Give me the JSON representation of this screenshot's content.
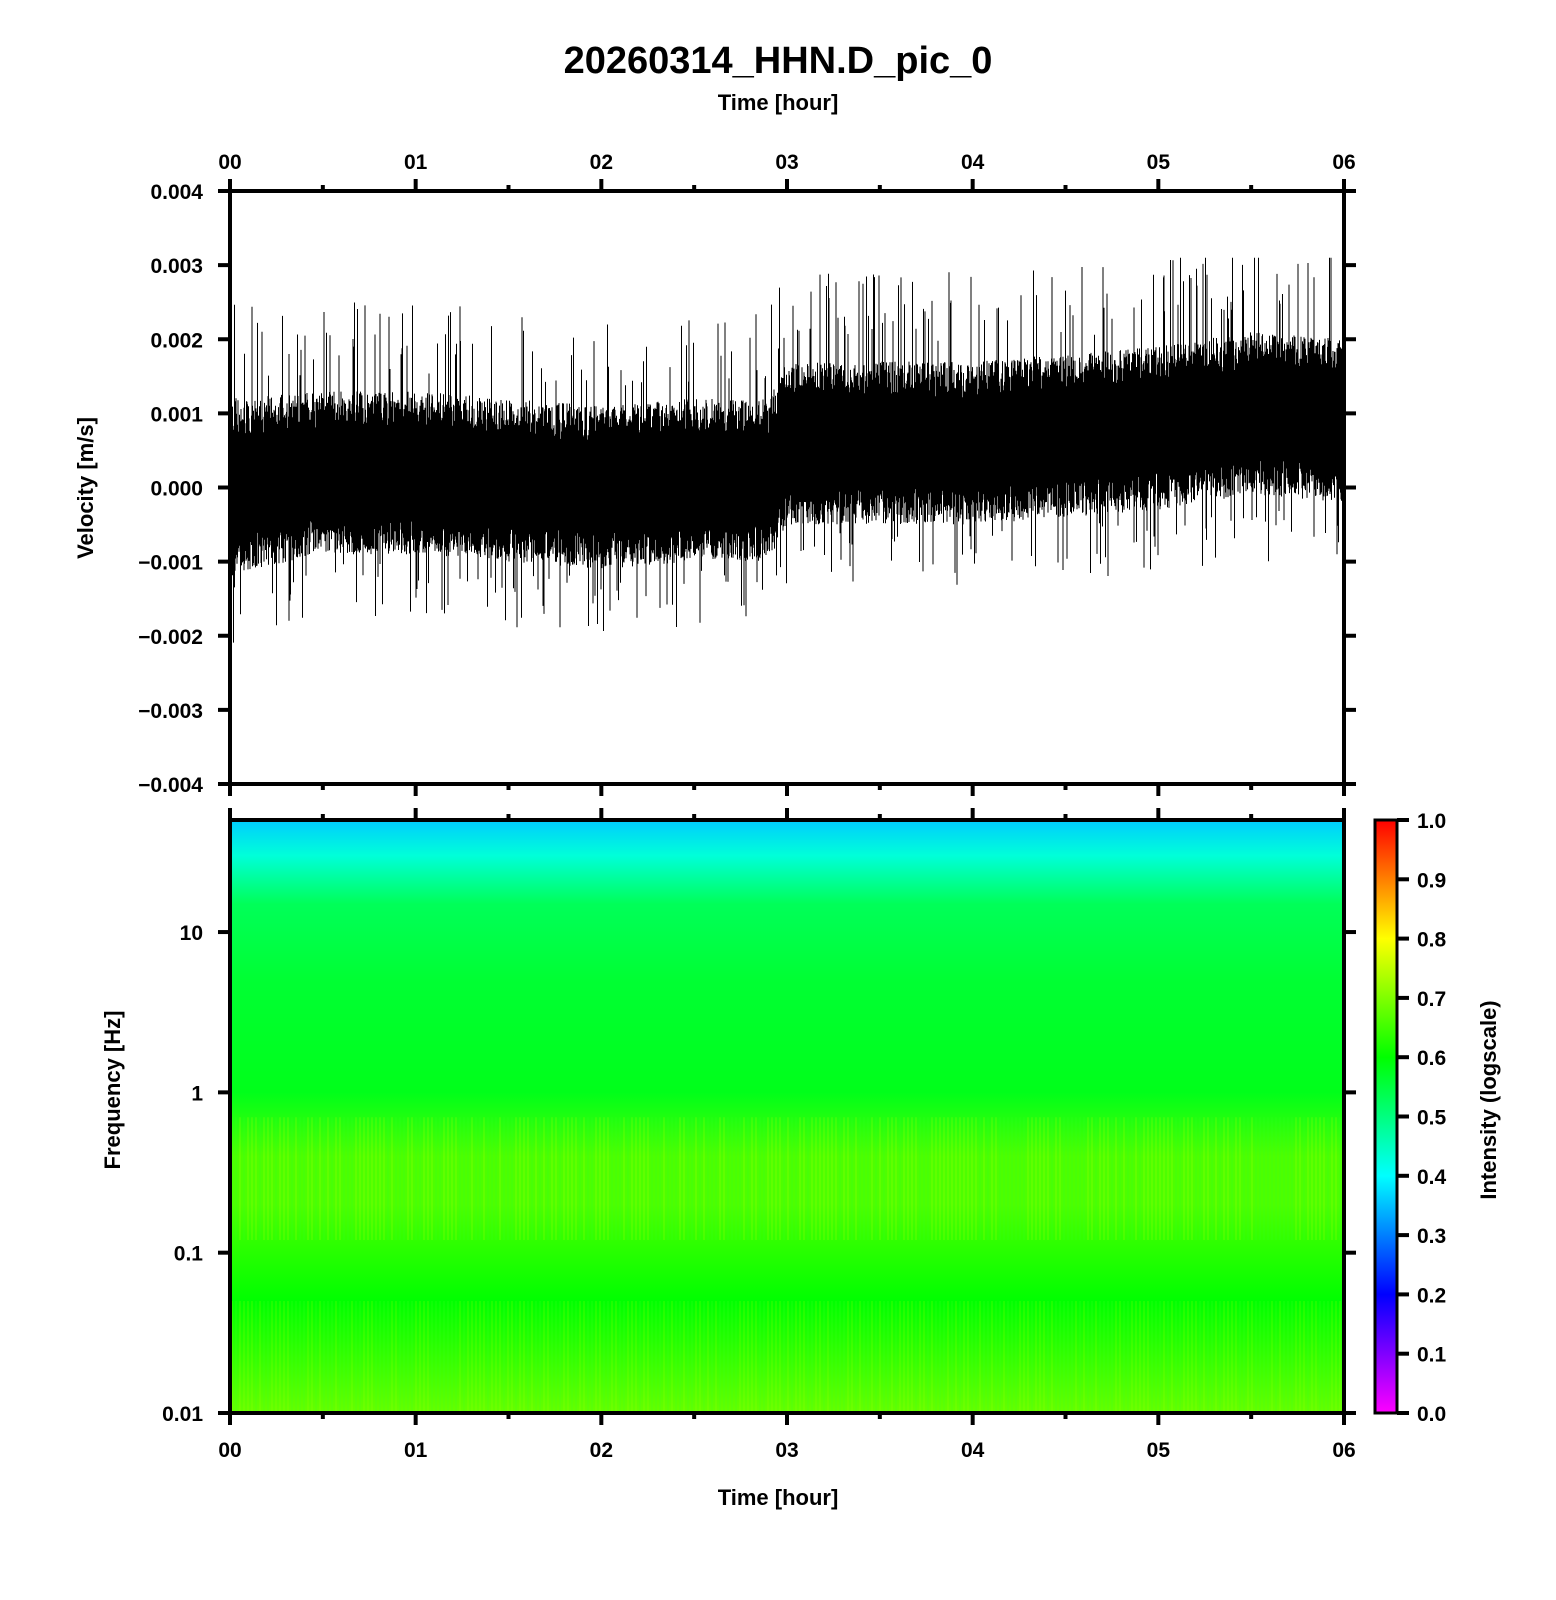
{
  "chart_data": [
    {
      "type": "line",
      "title": "20260314_HHN.D_pic_0",
      "top_axis_label": "Time [hour]",
      "xlabel": "",
      "ylabel": "Velocity [m/s]",
      "xlim": [
        0,
        6
      ],
      "ylim": [
        -0.004,
        0.004
      ],
      "x_ticks": [
        "00",
        "01",
        "02",
        "03",
        "04",
        "05",
        "06"
      ],
      "y_ticks": [
        "0.004",
        "0.003",
        "0.002",
        "0.001",
        "0.000",
        "−0.001",
        "−0.002",
        "−0.003",
        "−0.004"
      ],
      "series": [
        {
          "color": "#000000",
          "envelope_hours": [
            0,
            0.5,
            1,
            1.5,
            2,
            2.5,
            2.9,
            3,
            3.5,
            4,
            4.5,
            5,
            5.5,
            6
          ],
          "center": [
            0.0,
            0.0002,
            0.0002,
            0.0001,
            0.0,
            0.0001,
            0.0001,
            0.0006,
            0.0006,
            0.0006,
            0.0007,
            0.0008,
            0.001,
            0.0009
          ],
          "amplitude": [
            0.0012,
            0.0011,
            0.0011,
            0.0011,
            0.0011,
            0.0011,
            0.0011,
            0.0011,
            0.0011,
            0.0011,
            0.0011,
            0.0011,
            0.0011,
            0.0011
          ],
          "peak_max": 0.0031,
          "peak_min": -0.0022
        }
      ],
      "grid": false
    },
    {
      "type": "heatmap",
      "xlabel": "Time [hour]",
      "ylabel": "Frequency [Hz]",
      "xlim": [
        0,
        6
      ],
      "ylim": [
        0.01,
        50
      ],
      "yscale": "log",
      "x_ticks": [
        "00",
        "01",
        "02",
        "03",
        "04",
        "05",
        "06"
      ],
      "y_ticks": [
        "0.01",
        "0.1",
        "1",
        "10"
      ],
      "colorbar": {
        "label": "Intensity (logscale)",
        "range": [
          0.0,
          1.0
        ],
        "ticks": [
          "0.0",
          "0.1",
          "0.2",
          "0.3",
          "0.4",
          "0.5",
          "0.6",
          "0.7",
          "0.8",
          "0.9",
          "1.0"
        ],
        "colormap": [
          "#ff00ff",
          "#0000ff",
          "#00ffff",
          "#00ff00",
          "#ffff00",
          "#ff0000"
        ]
      },
      "intensity_profile": {
        "frequency_hz": [
          50,
          30,
          15,
          5,
          1,
          0.4,
          0.2,
          0.05,
          0.01
        ],
        "intensity": [
          0.36,
          0.43,
          0.53,
          0.56,
          0.58,
          0.66,
          0.66,
          0.6,
          0.68
        ]
      }
    }
  ]
}
